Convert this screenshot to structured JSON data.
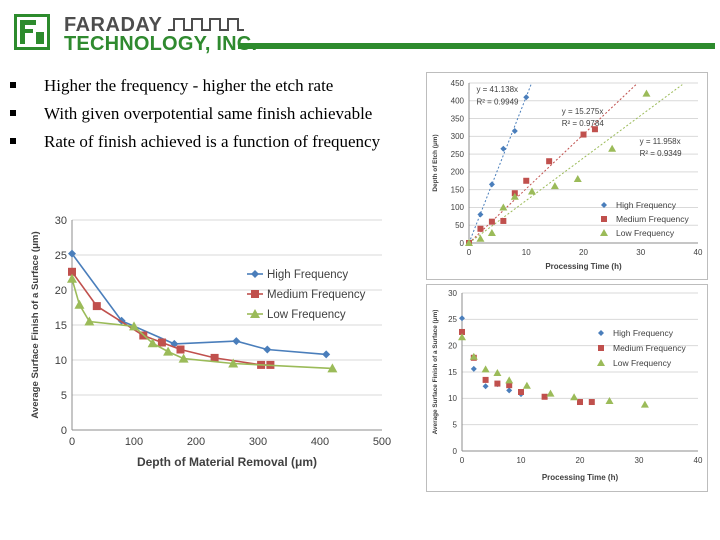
{
  "logo": {
    "line1": "FARADAY",
    "line2": "TECHNOLOGY, INC."
  },
  "bullets": [
    "Higher the frequency - higher the etch rate",
    "With given overpotential same finish achievable",
    "Rate of finish achieved is a function of frequency"
  ],
  "colors": {
    "high": "#4a7ebb",
    "medium": "#c0504d",
    "low": "#9bbb59",
    "brand_green": "#2d8b2d",
    "logo_gray": "#4d4d4d"
  },
  "chart_data": [
    {
      "id": "finish-vs-removal",
      "type": "line",
      "title": "",
      "xlabel": "Depth of Material Removal (μm)",
      "ylabel": "Average Surface Finish of a Surface (μm)",
      "xlim": [
        0,
        500
      ],
      "ylim": [
        0,
        30
      ],
      "xticks": [
        0,
        100,
        200,
        300,
        400,
        500
      ],
      "yticks": [
        0,
        5,
        10,
        15,
        20,
        25,
        30
      ],
      "legend_position": "right",
      "series": [
        {
          "name": "High Frequency",
          "color": "#4a7ebb",
          "marker": "diamond",
          "x": [
            0,
            80,
            165,
            265,
            315,
            410
          ],
          "y": [
            25.2,
            15.6,
            12.3,
            12.7,
            11.5,
            10.8
          ]
        },
        {
          "name": "Medium Frequency",
          "color": "#c0504d",
          "marker": "square",
          "x": [
            0,
            40,
            115,
            145,
            175,
            230,
            305,
            320
          ],
          "y": [
            22.6,
            17.7,
            13.5,
            12.5,
            11.5,
            10.3,
            9.3,
            9.3
          ]
        },
        {
          "name": "Low Frequency",
          "color": "#9bbb59",
          "marker": "triangle",
          "x": [
            0,
            12,
            28,
            100,
            130,
            155,
            180,
            260,
            420
          ],
          "y": [
            21.6,
            17.9,
            15.5,
            14.8,
            12.4,
            11.2,
            10.2,
            9.5,
            8.8
          ]
        }
      ]
    },
    {
      "id": "depth-vs-time",
      "type": "scatter",
      "title": "",
      "xlabel": "Processing Time (h)",
      "ylabel": "Depth of Etch (μm)",
      "xlim": [
        0,
        40
      ],
      "ylim": [
        0,
        450
      ],
      "xticks": [
        0,
        10,
        20,
        30,
        40
      ],
      "yticks": [
        0,
        50,
        100,
        150,
        200,
        250,
        300,
        350,
        400,
        450
      ],
      "legend_position": "bottom-right",
      "annotations": [
        "y = 41.138x",
        "R² = 0.9949",
        "y = 15.275x",
        "R² = 0.9784",
        "y = 11.958x",
        "R² = 0.9349"
      ],
      "series": [
        {
          "name": "High Frequency",
          "color": "#4a7ebb",
          "marker": "diamond",
          "slope": 41.138,
          "x": [
            0,
            2,
            4,
            6,
            8,
            10
          ],
          "y": [
            0,
            80,
            165,
            265,
            315,
            410
          ]
        },
        {
          "name": "Medium Frequency",
          "color": "#c0504d",
          "marker": "square",
          "slope": 15.275,
          "x": [
            0,
            2,
            4,
            6,
            8,
            10,
            14,
            20,
            22
          ],
          "y": [
            0,
            40,
            60,
            62,
            140,
            175,
            230,
            305,
            320
          ]
        },
        {
          "name": "Low Frequency",
          "color": "#9bbb59",
          "marker": "triangle",
          "slope": 11.958,
          "x": [
            0,
            2,
            4,
            6,
            8,
            11,
            15,
            19,
            25,
            31
          ],
          "y": [
            0,
            12,
            28,
            100,
            130,
            145,
            160,
            180,
            265,
            420
          ]
        }
      ]
    },
    {
      "id": "finish-vs-time",
      "type": "scatter",
      "title": "",
      "xlabel": "Processing Time (h)",
      "ylabel": "Average Surface Finish of a Surface (μm)",
      "xlim": [
        0,
        40
      ],
      "ylim": [
        0,
        30
      ],
      "xticks": [
        0,
        10,
        20,
        30,
        40
      ],
      "yticks": [
        0,
        5,
        10,
        15,
        20,
        25,
        30
      ],
      "legend_position": "right",
      "series": [
        {
          "name": "High Frequency",
          "color": "#4a7ebb",
          "marker": "diamond",
          "x": [
            0,
            2,
            4,
            6,
            8,
            10
          ],
          "y": [
            25.2,
            15.6,
            12.3,
            12.7,
            11.5,
            10.8
          ]
        },
        {
          "name": "Medium Frequency",
          "color": "#c0504d",
          "marker": "square",
          "x": [
            0,
            2,
            4,
            6,
            8,
            10,
            14,
            20,
            22
          ],
          "y": [
            22.6,
            17.7,
            13.5,
            12.8,
            12.5,
            11.2,
            10.3,
            9.3,
            9.3
          ]
        },
        {
          "name": "Low Frequency",
          "color": "#9bbb59",
          "marker": "triangle",
          "x": [
            0,
            2,
            4,
            6,
            8,
            11,
            15,
            19,
            25,
            31
          ],
          "y": [
            21.6,
            17.9,
            15.5,
            14.8,
            13.4,
            12.4,
            10.9,
            10.2,
            9.5,
            8.8
          ]
        }
      ]
    }
  ]
}
